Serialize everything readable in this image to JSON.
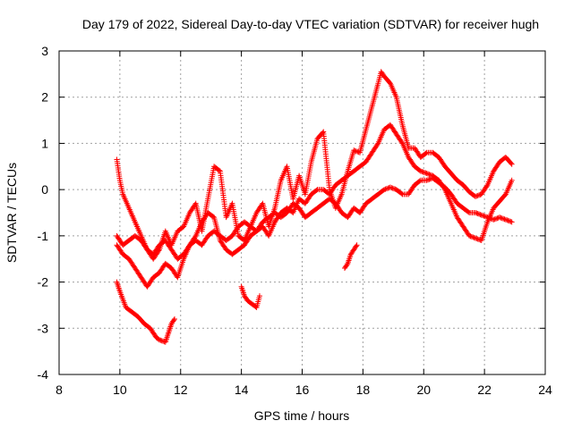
{
  "chart_data": {
    "type": "scatter",
    "title": "Day 179 of 2022, Sidereal Day-to-day VTEC variation (SDTVAR) for receiver hugh",
    "xlabel": "GPS time / hours",
    "ylabel": "SDTVAR / TECUs",
    "xlim": [
      8,
      24
    ],
    "ylim": [
      -4,
      3
    ],
    "xticks": [
      8,
      10,
      12,
      14,
      16,
      18,
      20,
      22,
      24
    ],
    "yticks": [
      -4,
      -3,
      -2,
      -1,
      0,
      1,
      2,
      3
    ],
    "grid": true,
    "marker": "+",
    "series_color": "#ff0000",
    "series": [
      {
        "name": "track-1",
        "x": [
          9.9,
          10.0,
          10.2,
          10.4,
          10.6,
          10.8,
          11.0,
          11.2,
          11.3,
          11.5,
          11.6,
          11.7,
          11.8
        ],
        "y": [
          -2.0,
          -2.2,
          -2.55,
          -2.65,
          -2.75,
          -2.9,
          -3.0,
          -3.2,
          -3.25,
          -3.3,
          -3.1,
          -2.9,
          -2.8
        ]
      },
      {
        "name": "track-2",
        "x": [
          9.9,
          10.0,
          10.1,
          10.3,
          10.5,
          10.7,
          10.9,
          11.1,
          11.3,
          11.5,
          11.7,
          11.9,
          12.1,
          12.3,
          12.5,
          12.7,
          12.9,
          13.1,
          13.3,
          13.5,
          13.7,
          13.9,
          14.1,
          14.3,
          14.5,
          14.7,
          14.9,
          15.1,
          15.3,
          15.5,
          15.7,
          15.9,
          16.1,
          16.3,
          16.5,
          16.7,
          16.9,
          17.1,
          17.3,
          17.5,
          17.7,
          17.9,
          18.1,
          18.3,
          18.5,
          18.6,
          18.7,
          18.9,
          19.1,
          19.3,
          19.5,
          19.7,
          19.9,
          20.1,
          20.3,
          20.5,
          20.7,
          20.9,
          21.1,
          21.3,
          21.5,
          21.7,
          21.9,
          22.1,
          22.3,
          22.5,
          22.7,
          22.9
        ],
        "y": [
          0.65,
          0.2,
          -0.1,
          -0.4,
          -0.7,
          -1.0,
          -1.3,
          -1.5,
          -1.3,
          -0.9,
          -1.2,
          -0.9,
          -0.8,
          -0.5,
          -0.3,
          -0.9,
          -0.2,
          0.5,
          0.4,
          -0.6,
          -0.3,
          -1.0,
          -1.1,
          -0.8,
          -0.5,
          -0.3,
          -0.8,
          -0.4,
          0.2,
          0.5,
          -0.2,
          0.3,
          -0.1,
          0.6,
          1.1,
          1.25,
          0.0,
          -0.4,
          -0.1,
          0.4,
          0.85,
          0.8,
          1.3,
          1.8,
          2.3,
          2.55,
          2.45,
          2.3,
          2.0,
          1.4,
          0.9,
          0.9,
          0.7,
          0.8,
          0.8,
          0.7,
          0.5,
          0.35,
          0.2,
          0.1,
          -0.05,
          -0.15,
          -0.1,
          0.1,
          0.4,
          0.6,
          0.7,
          0.55
        ]
      },
      {
        "name": "track-3",
        "x": [
          9.9,
          10.1,
          10.3,
          10.5,
          10.7,
          10.9,
          11.1,
          11.3,
          11.5,
          11.7,
          11.9,
          12.1,
          12.3,
          12.5,
          12.7,
          12.9,
          13.1,
          13.3,
          13.5,
          13.7,
          13.9,
          14.1,
          14.3,
          14.5,
          14.7,
          14.9,
          15.1,
          15.3,
          15.5,
          15.7,
          15.9,
          16.1,
          16.3,
          16.5,
          16.7,
          16.9,
          17.1,
          17.3,
          17.5,
          17.7,
          17.9,
          18.1,
          18.3,
          18.5,
          18.7,
          18.9,
          19.1,
          19.3,
          19.5,
          19.7,
          19.9,
          20.1,
          20.3,
          20.5,
          20.7,
          20.9,
          21.1,
          21.3,
          21.5,
          21.7,
          21.9,
          22.1,
          22.3,
          22.5,
          22.7,
          22.9
        ],
        "y": [
          -1.2,
          -1.4,
          -1.5,
          -1.7,
          -1.9,
          -2.1,
          -1.9,
          -1.8,
          -1.6,
          -1.7,
          -1.9,
          -1.5,
          -1.2,
          -1.0,
          -0.7,
          -0.5,
          -0.6,
          -1.1,
          -1.3,
          -1.4,
          -1.3,
          -1.2,
          -1.0,
          -0.9,
          -0.8,
          -1.0,
          -0.7,
          -0.5,
          -0.4,
          -0.5,
          -0.2,
          -0.3,
          -0.1,
          0.0,
          0.0,
          -0.1,
          0.1,
          0.2,
          0.3,
          0.4,
          0.5,
          0.6,
          0.8,
          1.0,
          1.3,
          1.4,
          1.2,
          1.0,
          0.7,
          0.5,
          0.4,
          0.35,
          0.3,
          0.2,
          0.0,
          -0.3,
          -0.6,
          -0.8,
          -1.0,
          -1.05,
          -1.1,
          -0.7,
          -0.4,
          -0.25,
          -0.1,
          0.2
        ]
      },
      {
        "name": "track-4",
        "x": [
          9.9,
          10.1,
          10.3,
          10.5,
          10.7,
          10.9,
          11.1,
          11.3,
          11.5,
          11.7,
          11.9,
          12.1,
          12.3,
          12.5,
          12.7,
          12.9,
          13.1,
          13.3,
          13.5,
          13.7,
          13.9,
          14.1,
          14.3,
          14.5,
          14.7,
          14.9,
          15.1,
          15.3,
          15.5,
          15.7,
          15.9,
          16.1,
          16.3,
          16.5,
          16.7,
          16.9,
          17.1,
          17.3,
          17.5,
          17.7,
          17.9,
          18.1,
          18.3,
          18.5,
          18.7,
          18.9,
          19.1,
          19.3,
          19.5,
          19.7,
          19.9,
          20.1,
          20.3,
          20.5,
          20.7,
          20.9,
          21.1,
          21.3,
          21.5,
          21.7,
          21.9,
          22.1,
          22.3,
          22.5,
          22.7,
          22.9
        ],
        "y": [
          -1.0,
          -1.2,
          -1.1,
          -1.0,
          -1.1,
          -1.3,
          -1.4,
          -1.2,
          -1.1,
          -1.3,
          -1.5,
          -1.4,
          -1.2,
          -1.1,
          -1.2,
          -1.0,
          -0.9,
          -1.0,
          -1.1,
          -1.0,
          -0.8,
          -0.7,
          -0.8,
          -0.9,
          -0.7,
          -0.6,
          -0.5,
          -0.6,
          -0.5,
          -0.3,
          -0.4,
          -0.6,
          -0.5,
          -0.4,
          -0.3,
          -0.2,
          -0.3,
          -0.5,
          -0.6,
          -0.4,
          -0.5,
          -0.3,
          -0.2,
          -0.1,
          0.0,
          0.05,
          0.0,
          -0.1,
          -0.1,
          0.1,
          0.2,
          0.2,
          0.25,
          0.15,
          0.05,
          -0.1,
          -0.3,
          -0.4,
          -0.5,
          -0.5,
          -0.55,
          -0.6,
          -0.65,
          -0.6,
          -0.65,
          -0.7
        ]
      },
      {
        "name": "track-5",
        "x": [
          14.0,
          14.1,
          14.2,
          14.3,
          14.4,
          14.5,
          14.6
        ],
        "y": [
          -2.1,
          -2.3,
          -2.4,
          -2.45,
          -2.5,
          -2.55,
          -2.3
        ]
      },
      {
        "name": "track-6",
        "x": [
          17.4,
          17.5,
          17.6,
          17.7,
          17.8
        ],
        "y": [
          -1.7,
          -1.6,
          -1.4,
          -1.3,
          -1.2
        ]
      }
    ]
  }
}
